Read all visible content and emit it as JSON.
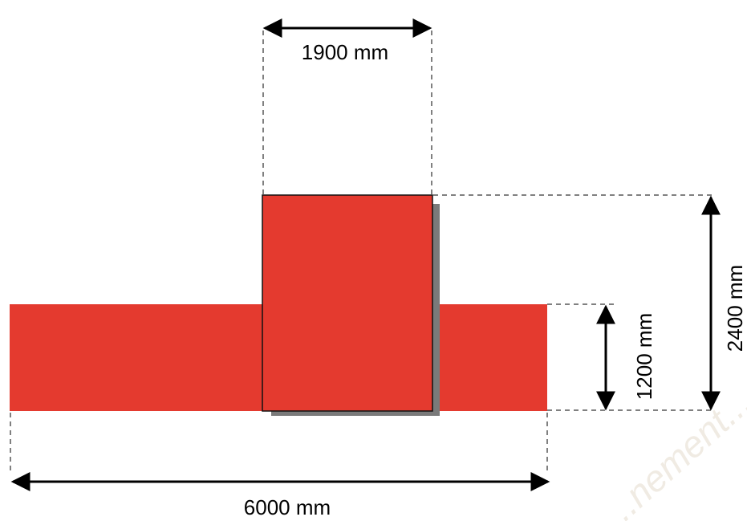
{
  "diagram": {
    "dimensions": {
      "top_width": "1900 mm",
      "bottom_width": "6000 mm",
      "inner_height": "1200 mm",
      "outer_height": "2400 mm"
    },
    "colors": {
      "fill": "#e43a2f",
      "shadow": "#7a7a7a",
      "dimension_line": "#000000",
      "watermark": "#f0ebe3"
    },
    "watermark_text": "...nement..."
  }
}
